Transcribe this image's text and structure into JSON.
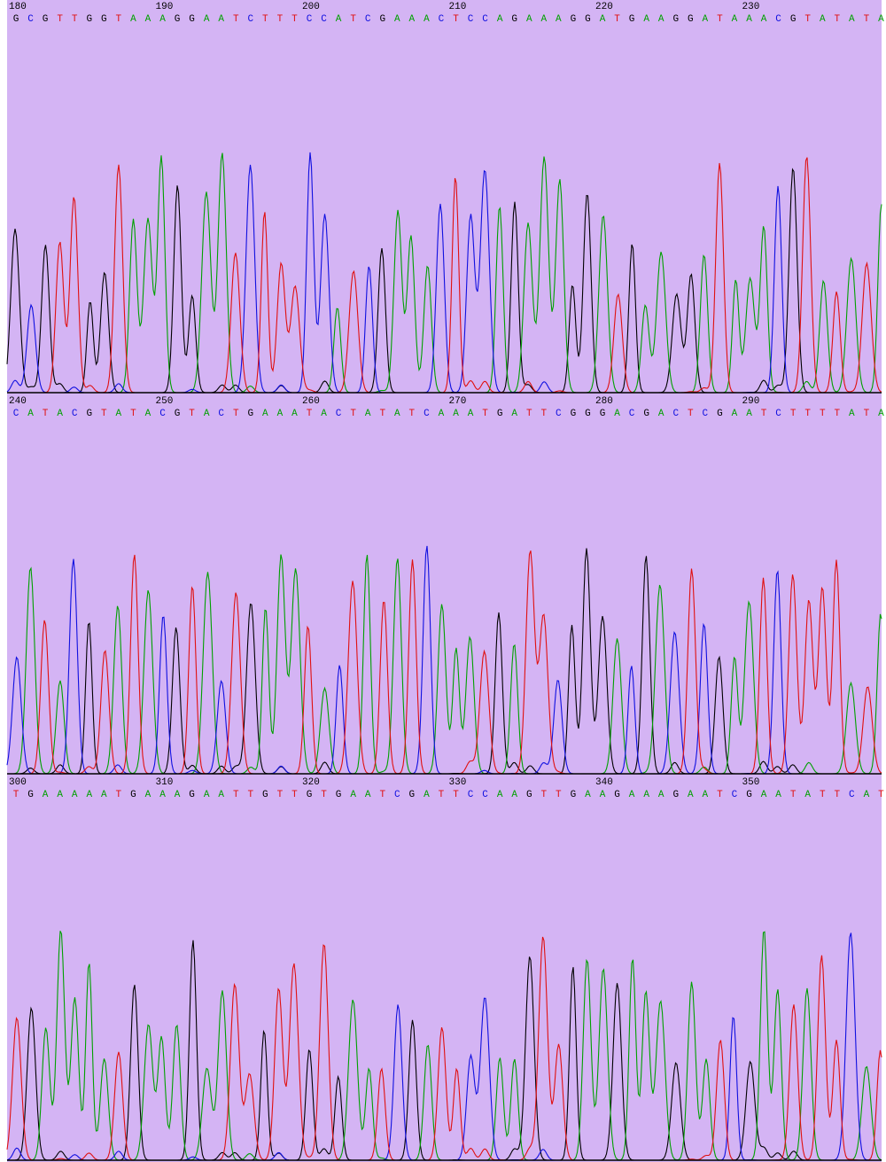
{
  "panels": [
    {
      "ticks": [
        180,
        190,
        200,
        210,
        220,
        230
      ],
      "bases": [
        "G",
        "C",
        "G",
        "T",
        "T",
        "G",
        "G",
        "T",
        "A",
        "A",
        "A",
        "G",
        "G",
        "A",
        "A",
        "T",
        "C",
        "T",
        "T",
        "T",
        "C",
        "C",
        "A",
        "T",
        "C",
        "G",
        "A",
        "A",
        "A",
        "C",
        "T",
        "C",
        "C",
        "A",
        "G",
        "A",
        "A",
        "A",
        "G",
        "G",
        "A",
        "T",
        "G",
        "A",
        "A",
        "G",
        "G",
        "A",
        "T",
        "A",
        "A",
        "A",
        "C",
        "G",
        "T",
        "A",
        "T",
        "A",
        "T",
        "A"
      ]
    },
    {
      "ticks": [
        240,
        250,
        260,
        270,
        280,
        290
      ],
      "bases": [
        "C",
        "A",
        "T",
        "A",
        "C",
        "G",
        "T",
        "A",
        "T",
        "A",
        "C",
        "G",
        "T",
        "A",
        "C",
        "T",
        "G",
        "A",
        "A",
        "A",
        "T",
        "A",
        "C",
        "T",
        "A",
        "T",
        "A",
        "T",
        "C",
        "A",
        "A",
        "A",
        "T",
        "G",
        "A",
        "T",
        "T",
        "C",
        "G",
        "G",
        "G",
        "A",
        "C",
        "G",
        "A",
        "C",
        "T",
        "C",
        "G",
        "A",
        "A",
        "T",
        "C",
        "T",
        "T",
        "T",
        "T",
        "A",
        "T",
        "A"
      ]
    },
    {
      "ticks": [
        300,
        310,
        320,
        330,
        340,
        350
      ],
      "bases": [
        "T",
        "G",
        "A",
        "A",
        "A",
        "A",
        "A",
        "T",
        "G",
        "A",
        "A",
        "A",
        "G",
        "A",
        "A",
        "T",
        "T",
        "G",
        "T",
        "T",
        "G",
        "T",
        "G",
        "A",
        "A",
        "T",
        "C",
        "G",
        "A",
        "T",
        "T",
        "C",
        "C",
        "A",
        "A",
        "G",
        "T",
        "T",
        "G",
        "A",
        "A",
        "G",
        "A",
        "A",
        "A",
        "G",
        "A",
        "A",
        "T",
        "C",
        "G",
        "A",
        "A",
        "T",
        "A",
        "T",
        "T",
        "C",
        "A",
        "T"
      ]
    }
  ]
}
